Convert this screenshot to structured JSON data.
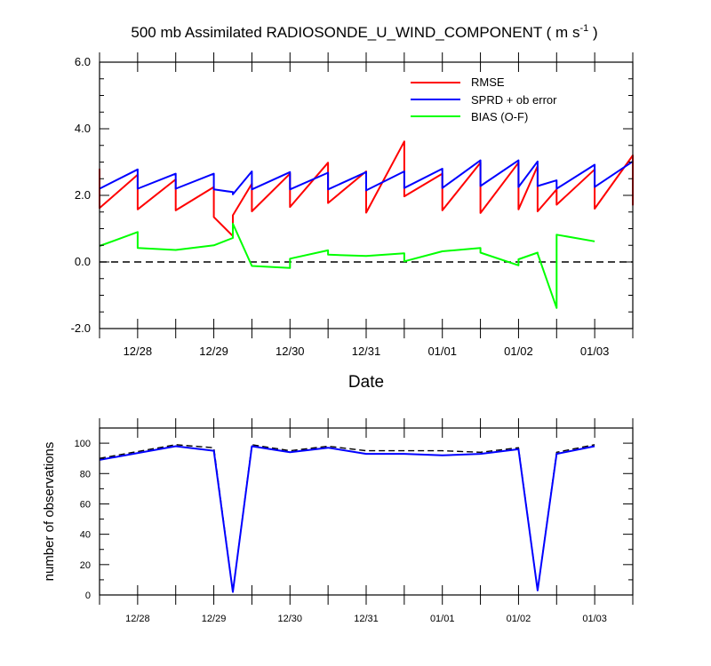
{
  "chart_data": [
    {
      "type": "line",
      "title": "500 mb Assimilated RADIOSONDE_U_WIND_COMPONENT ( m s",
      "title_exponent": "-1",
      "title_close": " )",
      "xlabel": "Date",
      "ylabel": "",
      "ylim": [
        -2.0,
        6.0
      ],
      "xlim": [
        0,
        7.0
      ],
      "yticks": [
        -2.0,
        0.0,
        2.0,
        4.0,
        6.0
      ],
      "ytick_labels": [
        "-2.0",
        "0.0",
        "2.0",
        "4.0",
        "6.0"
      ],
      "xticks": [
        0.5,
        1.5,
        2.5,
        3.5,
        4.5,
        5.5,
        6.5
      ],
      "xtick_labels": [
        "12/28",
        "12/29",
        "12/30",
        "12/31",
        "01/01",
        "01/02",
        "01/03"
      ],
      "grid": false,
      "legend_position": "top-right",
      "reference_line": {
        "y": 0.0,
        "style": "dashed",
        "color": "#000000"
      },
      "series": [
        {
          "name": "RMSE",
          "color": "#ff0000",
          "x": [
            0.0,
            0.0,
            0.5,
            0.5,
            1.0,
            1.0,
            1.5,
            1.5,
            1.75,
            1.75,
            2.0,
            2.0,
            2.5,
            2.5,
            3.0,
            3.0,
            3.5,
            3.5,
            4.0,
            4.0,
            4.5,
            4.5,
            5.0,
            5.0,
            5.5,
            5.5,
            5.75,
            5.75,
            6.0,
            6.0,
            6.5,
            6.5,
            7.0,
            7.0
          ],
          "y": [
            2.8,
            1.62,
            2.62,
            1.58,
            2.48,
            1.55,
            2.25,
            1.35,
            0.78,
            1.4,
            2.35,
            1.52,
            2.65,
            1.65,
            2.98,
            1.77,
            2.72,
            1.48,
            3.62,
            1.97,
            2.65,
            1.55,
            2.98,
            1.47,
            2.98,
            1.58,
            2.88,
            1.52,
            2.18,
            1.72,
            2.78,
            1.6,
            3.2,
            1.7
          ]
        },
        {
          "name": "SPRD + ob error",
          "color": "#0000ff",
          "x": [
            0.0,
            0.5,
            0.5,
            1.0,
            1.0,
            1.5,
            1.5,
            1.75,
            1.75,
            2.0,
            2.0,
            2.5,
            2.5,
            3.0,
            3.0,
            3.5,
            3.5,
            4.0,
            4.0,
            4.5,
            4.5,
            5.0,
            5.0,
            5.5,
            5.5,
            5.75,
            5.75,
            6.0,
            6.0,
            6.5,
            6.5,
            7.0
          ],
          "y": [
            2.2,
            2.78,
            2.2,
            2.65,
            2.2,
            2.65,
            2.18,
            2.1,
            2.03,
            2.72,
            2.18,
            2.7,
            2.18,
            2.68,
            2.18,
            2.7,
            2.15,
            2.72,
            2.22,
            2.8,
            2.22,
            3.05,
            2.28,
            3.05,
            2.25,
            3.02,
            2.28,
            2.45,
            2.2,
            2.92,
            2.25,
            3.02
          ]
        },
        {
          "name": "BIAS (O-F)",
          "color": "#00ff00",
          "x": [
            0.0,
            0.5,
            0.5,
            1.0,
            1.5,
            1.75,
            1.75,
            2.0,
            2.5,
            2.5,
            3.0,
            3.0,
            3.5,
            4.0,
            4.0,
            4.5,
            5.0,
            5.0,
            5.5,
            5.5,
            5.75,
            5.75,
            6.0,
            6.0,
            6.5
          ],
          "y": [
            0.48,
            0.9,
            0.42,
            0.36,
            0.5,
            0.72,
            1.15,
            -0.12,
            -0.18,
            0.1,
            0.35,
            0.22,
            0.18,
            0.26,
            0.02,
            0.32,
            0.42,
            0.28,
            -0.1,
            0.08,
            0.28,
            0.25,
            -1.38,
            0.82,
            0.62
          ]
        }
      ]
    },
    {
      "type": "line",
      "title": "",
      "xlabel": "",
      "ylabel": "number of observations",
      "ylim": [
        0,
        110
      ],
      "xlim": [
        0,
        7.0
      ],
      "yticks": [
        0,
        20,
        40,
        60,
        80,
        100
      ],
      "ytick_labels": [
        "0",
        "20",
        "40",
        "60",
        "80",
        "100"
      ],
      "xticks": [
        0.5,
        1.5,
        2.5,
        3.5,
        4.5,
        5.5,
        6.5
      ],
      "xtick_labels": [
        "12/28",
        "12/29",
        "12/30",
        "12/31",
        "01/01",
        "01/02",
        "01/03"
      ],
      "grid": false,
      "series": [
        {
          "color": "#000000",
          "style": "dashed",
          "x": [
            0.0,
            1.0,
            1.5,
            1.75,
            2.0,
            2.5,
            3.0,
            3.5,
            4.0,
            4.5,
            5.0,
            5.5,
            5.75,
            6.0,
            6.5
          ],
          "y": [
            90,
            99,
            97,
            2,
            99,
            95,
            98,
            95,
            95,
            95,
            94,
            97,
            3,
            94,
            99
          ]
        },
        {
          "color": "#0000ff",
          "style": "solid",
          "x": [
            0.0,
            1.0,
            1.5,
            1.75,
            2.0,
            2.5,
            3.0,
            3.5,
            4.0,
            4.5,
            5.0,
            5.5,
            5.75,
            6.0,
            6.5
          ],
          "y": [
            89,
            98,
            95,
            2,
            98,
            94,
            97,
            93,
            93,
            92,
            93,
            96,
            3,
            93,
            98
          ]
        }
      ]
    }
  ]
}
